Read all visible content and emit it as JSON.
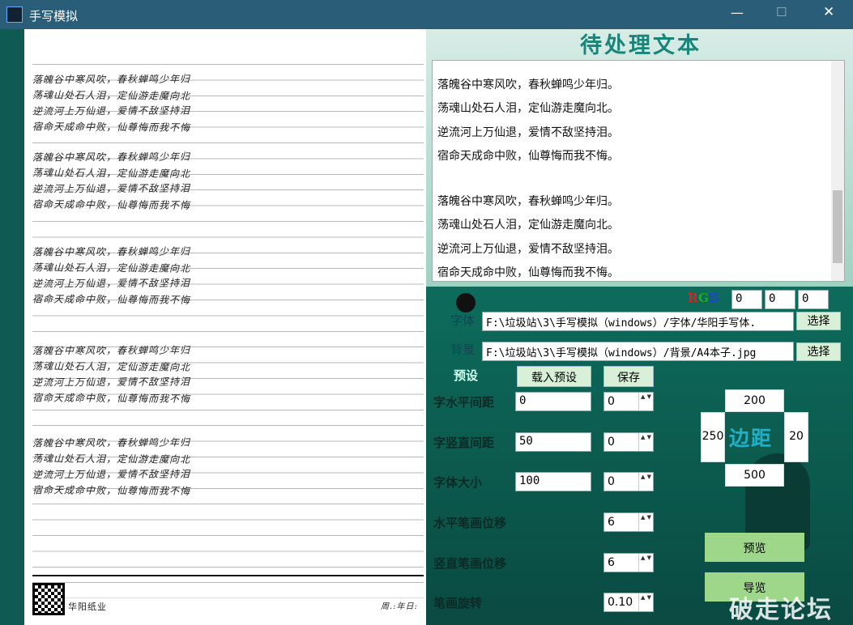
{
  "window": {
    "title": "手写模拟"
  },
  "preview": {
    "blocks": [
      [
        "落魄谷中寒风吹，春秋蝉鸣少年归",
        "荡魂山处石人泪，定仙游走魔向北",
        "逆流河上万仙退，爱情不敌坚持泪",
        "宿命天成命中败，仙尊悔而我不悔"
      ],
      [
        "落魄谷中寒风吹，春秋蝉鸣少年归",
        "荡魂山处石人泪，定仙游走魔向北",
        "逆流河上万仙退，爱情不敌坚持泪",
        "宿命天成命中败，仙尊悔而我不悔"
      ],
      [
        "落魄谷中寒风吹，春秋蝉鸣少年归",
        "荡魂山处石人泪，定仙游走魔向北",
        "逆流河上万仙退，爱情不敌坚持泪",
        "宿命天成命中败，仙尊悔而我不悔"
      ],
      [
        "落魄谷中寒风吹，春秋蝉鸣少年归",
        "荡魂山处石人泪，定仙游走魔向北",
        "逆流河上万仙退，爱情不敌坚持泪",
        "宿命天成命中败，仙尊悔而我不悔"
      ],
      [
        "落魄谷中寒风吹，春秋蝉鸣少年归",
        "荡魂山处石人泪，定仙游走魔向北",
        "逆流河上万仙退，爱情不敌坚持泪",
        "宿命天成命中败，仙尊悔而我不悔"
      ]
    ],
    "footer_brand": "华阳纸业",
    "footer_date": "周.:年日:"
  },
  "text_panel": {
    "title": "待处理文本",
    "paragraphs": [
      [
        "落魄谷中寒风吹，春秋蝉鸣少年归。",
        "荡魂山处石人泪，定仙游走魔向北。",
        "逆流河上万仙退，爱情不敌坚持泪。",
        "宿命天成命中败，仙尊悔而我不悔。"
      ],
      [
        "落魄谷中寒风吹，春秋蝉鸣少年归。",
        "荡魂山处石人泪，定仙游走魔向北。",
        "逆流河上万仙退，爱情不敌坚持泪。",
        "宿命天成命中败，仙尊悔而我不悔。"
      ]
    ]
  },
  "settings": {
    "rgb_label": [
      "R",
      "G",
      "B"
    ],
    "rgb": [
      "0",
      "0",
      "0"
    ],
    "font_label": "字体",
    "font_path": "F:\\垃圾站\\3\\手写模拟（windows）/字体/华阳手写体.",
    "font_button": "选择",
    "background_label": "背景",
    "background_path": "F:\\垃圾站\\3\\手写模拟（windows）/背景/A4本子.jpg",
    "background_button": "选择",
    "preset_label": "预设",
    "load_preset_button": "载入预设",
    "save_button": "保存",
    "h_spacing_label": "字水平间距",
    "h_spacing": "0",
    "h_spacing_jitter": "0",
    "v_spacing_label": "字竖直间距",
    "v_spacing": "50",
    "v_spacing_jitter": "0",
    "font_size_label": "字体大小",
    "font_size": "100",
    "font_size_jitter": "0",
    "h_stroke_label": "水平笔画位移",
    "h_stroke": "6",
    "v_stroke_label": "竖直笔画位移",
    "v_stroke": "6",
    "rotation_label": "笔画旋转",
    "rotation": "0.10",
    "margin_label": "边距",
    "margin_top": "200",
    "margin_left": "250",
    "margin_right": "20",
    "margin_bottom": "500",
    "preview_button": "预览",
    "export_button": "导览"
  },
  "watermark": "破走论坛"
}
